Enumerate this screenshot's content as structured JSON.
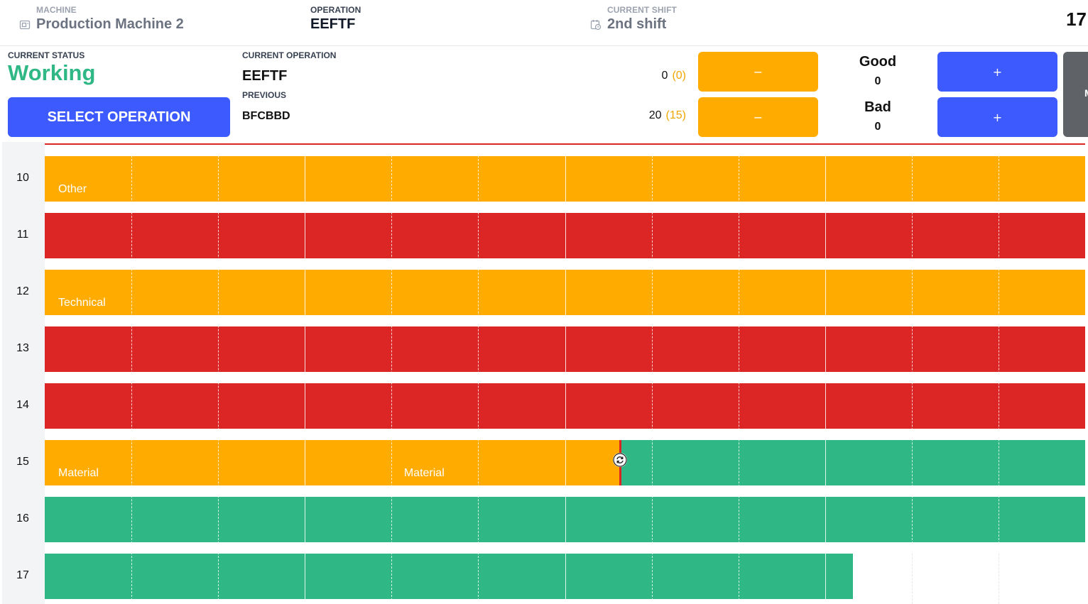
{
  "header": {
    "machine_label": "MACHINE",
    "machine_value": "Production Machine 2",
    "operation_label": "OPERATION",
    "operation_value": "EEFTF",
    "shift_label": "CURRENT SHIFT",
    "shift_value": "2nd shift",
    "clock": "17"
  },
  "status": {
    "label": "CURRENT STATUS",
    "value": "Working",
    "select_button": "SELECT OPERATION"
  },
  "operations": {
    "current_label": "CURRENT OPERATION",
    "current_name": "EEFTF",
    "current_count": "0",
    "current_count_paren": "(0)",
    "previous_label": "PREVIOUS",
    "previous_name": "BFCBBD",
    "previous_count": "20",
    "previous_count_paren": "(15)",
    "minus_symbol": "−",
    "plus_symbol": "+"
  },
  "quality": {
    "good_label": "Good",
    "good_value": "0",
    "bad_label": "Bad",
    "bad_value": "0"
  },
  "side_panel": {
    "label": "M"
  },
  "colors": {
    "working": "#2fb886",
    "downtime": "#dc2626",
    "reason": "#ffab00",
    "primary": "#3d5afe",
    "side_panel": "#5f6368"
  },
  "timeline": {
    "rows": [
      {
        "hour": "10",
        "segments": [
          {
            "from": 0,
            "to": 1,
            "status": "reason",
            "label": "Other"
          }
        ]
      },
      {
        "hour": "11",
        "segments": [
          {
            "from": 0,
            "to": 1,
            "status": "downtime",
            "label": ""
          }
        ]
      },
      {
        "hour": "12",
        "segments": [
          {
            "from": 0,
            "to": 1,
            "status": "reason",
            "label": "Technical"
          }
        ]
      },
      {
        "hour": "13",
        "segments": [
          {
            "from": 0,
            "to": 1,
            "status": "downtime",
            "label": ""
          }
        ]
      },
      {
        "hour": "14",
        "segments": [
          {
            "from": 0,
            "to": 1,
            "status": "downtime",
            "label": ""
          }
        ]
      },
      {
        "hour": "15",
        "segments": [
          {
            "from": 0,
            "to": 0.29,
            "status": "reason",
            "label": "Material"
          },
          {
            "from": 0.29,
            "to": 0.553,
            "status": "reason",
            "label": "Material"
          },
          {
            "from": 0.553,
            "to": 1,
            "status": "working",
            "label": ""
          }
        ],
        "marker_at": 0.553
      },
      {
        "hour": "16",
        "segments": [
          {
            "from": 0,
            "to": 1,
            "status": "working",
            "label": ""
          }
        ]
      },
      {
        "hour": "17",
        "segments": [
          {
            "from": 0,
            "to": 0.777,
            "status": "working",
            "label": ""
          }
        ]
      }
    ]
  }
}
